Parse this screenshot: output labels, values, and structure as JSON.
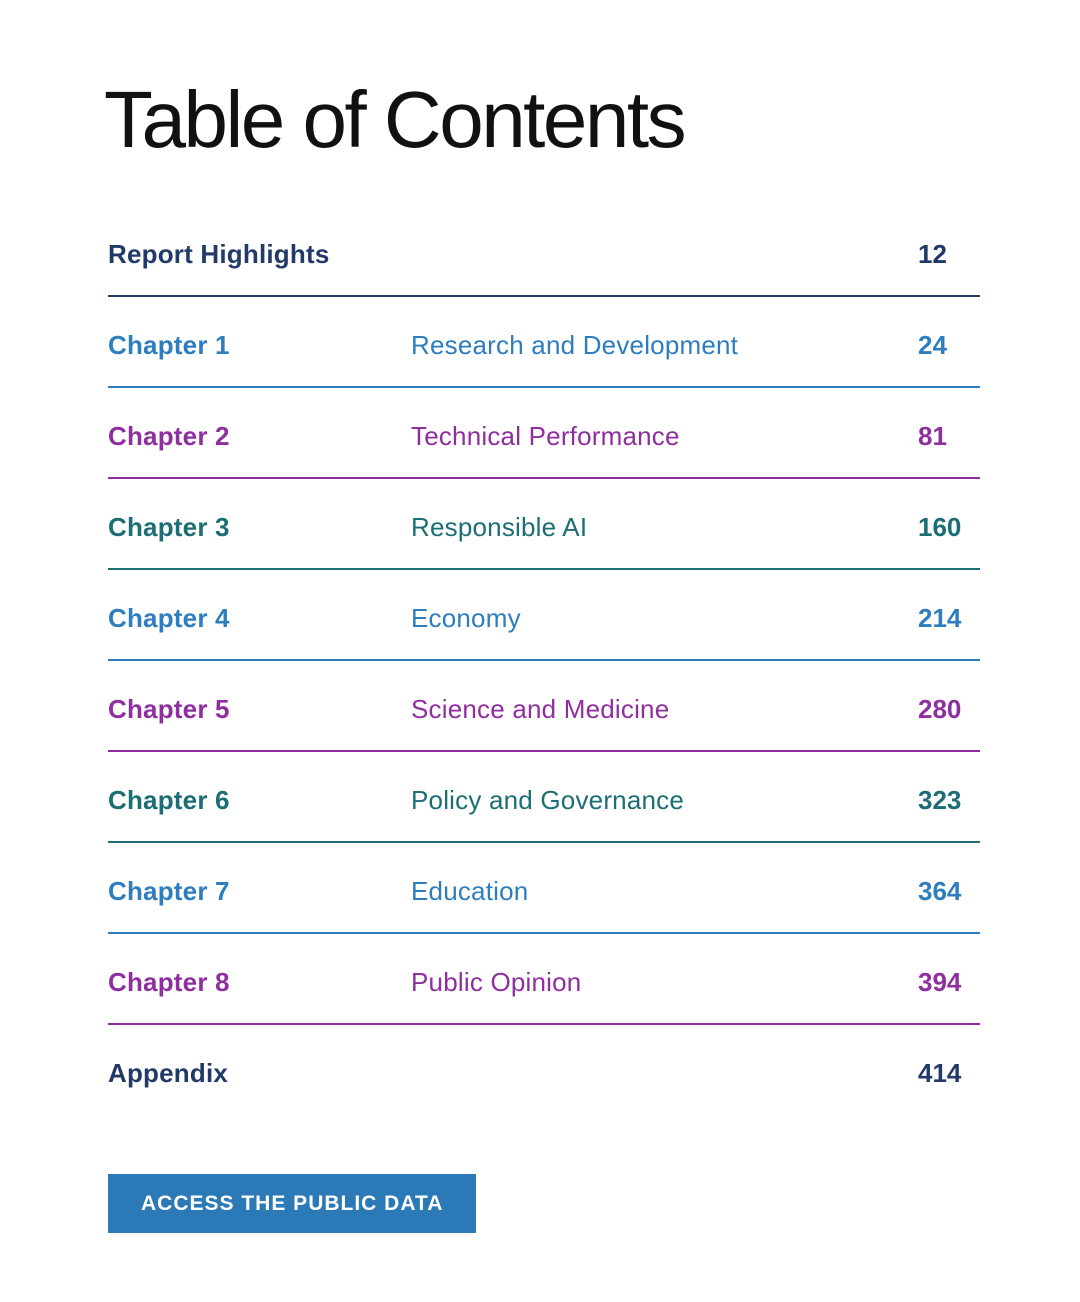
{
  "page_title": "Table of Contents",
  "colors": {
    "title_text": "#111111",
    "navy": "#223a68",
    "blue": "#2e7dbf",
    "purple": "#8f2f9f",
    "teal": "#1c6e74",
    "button_bg": "#2b79b7",
    "button_text": "#ffffff"
  },
  "toc": {
    "rows": [
      {
        "label": "Report Highlights",
        "title": "",
        "page": "12",
        "color": "navy"
      },
      {
        "label": "Chapter 1",
        "title": "Research and Development",
        "page": "24",
        "color": "blue"
      },
      {
        "label": "Chapter 2",
        "title": "Technical Performance",
        "page": "81",
        "color": "purple"
      },
      {
        "label": "Chapter 3",
        "title": "Responsible AI",
        "page": "160",
        "color": "teal"
      },
      {
        "label": "Chapter 4",
        "title": "Economy",
        "page": "214",
        "color": "blue"
      },
      {
        "label": "Chapter 5",
        "title": "Science and Medicine",
        "page": "280",
        "color": "purple"
      },
      {
        "label": "Chapter 6",
        "title": "Policy and Governance",
        "page": "323",
        "color": "teal"
      },
      {
        "label": "Chapter 7",
        "title": "Education",
        "page": "364",
        "color": "blue"
      },
      {
        "label": "Chapter 8",
        "title": "Public Opinion",
        "page": "394",
        "color": "purple"
      },
      {
        "label": "Appendix",
        "title": "",
        "page": "414",
        "color": "navy",
        "no_line": true
      }
    ]
  },
  "actions": {
    "access_data_label": "ACCESS THE PUBLIC DATA"
  }
}
